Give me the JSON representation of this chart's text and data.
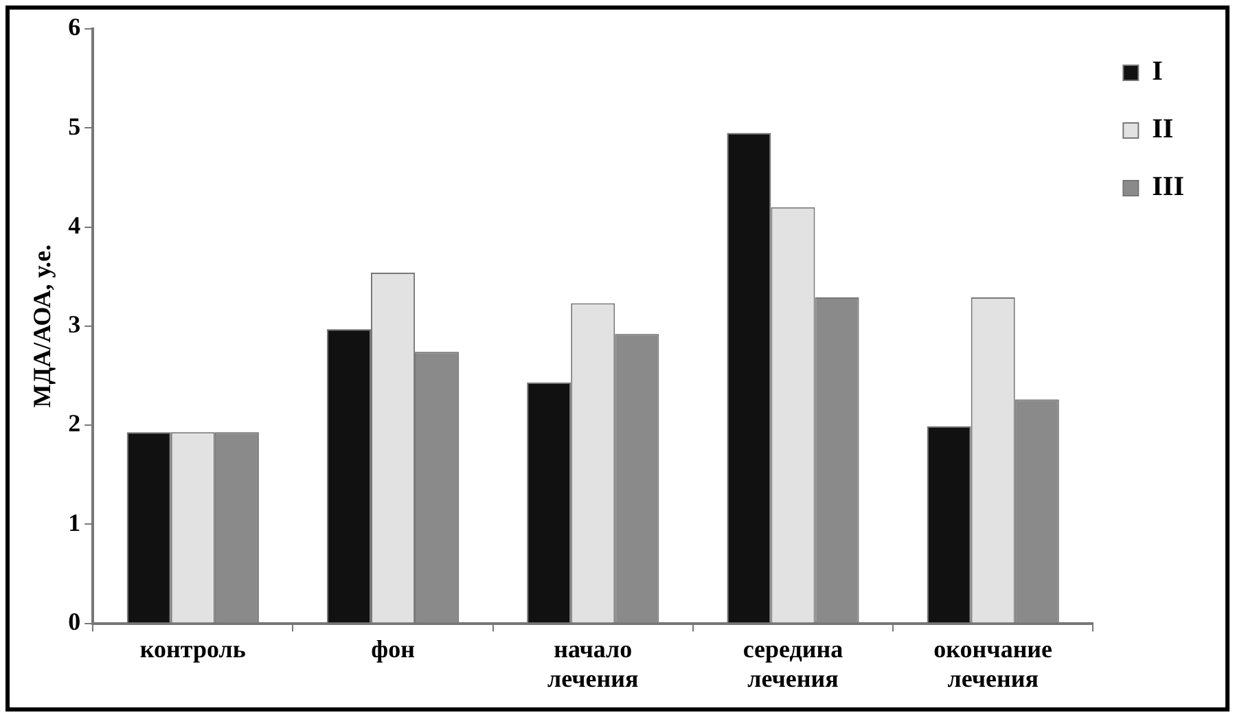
{
  "chart_data": {
    "type": "bar",
    "ylabel": "МДА/АОА, у.е.",
    "categories": [
      "контроль",
      "фон",
      "начало лечения",
      "середина лечения",
      "окончание лечения"
    ],
    "series": [
      {
        "name": "I",
        "color": "#111111",
        "values": [
          1.93,
          2.97,
          2.43,
          4.95,
          1.99
        ]
      },
      {
        "name": "II",
        "color": "#e2e2e2",
        "values": [
          1.93,
          3.54,
          3.23,
          4.2,
          3.29
        ]
      },
      {
        "name": "III",
        "color": "#8a8a8a",
        "values": [
          1.93,
          2.74,
          2.92,
          3.29,
          2.26
        ]
      }
    ],
    "ylim": [
      0,
      6
    ],
    "yticks": [
      0,
      1,
      2,
      3,
      4,
      5,
      6
    ],
    "grid": false,
    "legend": "top right"
  }
}
